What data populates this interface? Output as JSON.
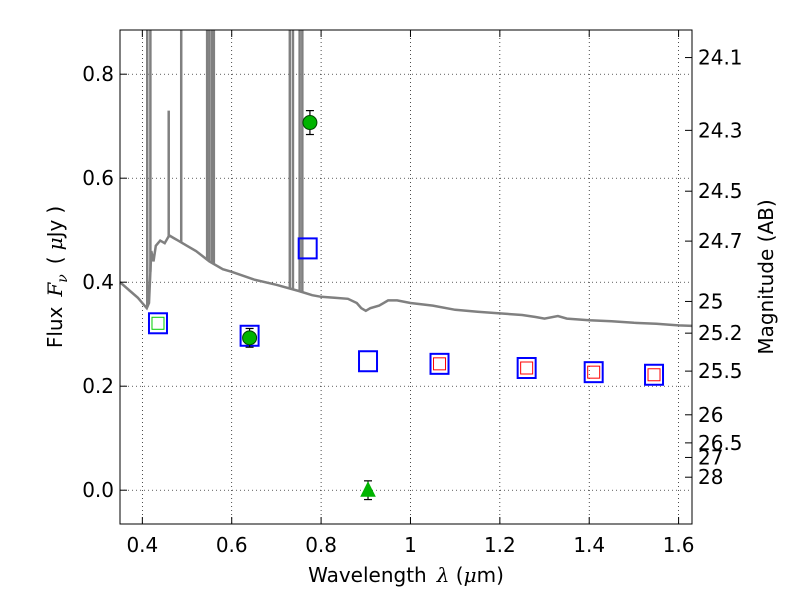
{
  "chart_data": {
    "type": "scatter",
    "xlabel": "Wavelength",
    "xlabel_symbol": "λ",
    "xlabel_unit_open": " (",
    "xlabel_unit_mu": "μ",
    "xlabel_unit_rest": "m)",
    "ylabel_prefix": "Flux",
    "ylabel_symbol": "F",
    "ylabel_sub": "ν",
    "ylabel_unit_open": "(",
    "ylabel_unit_mu": "μ",
    "ylabel_unit_rest": "Jy",
    "ylabel_unit_close": ")",
    "y2label": "Magnitude (AB)",
    "xlim": [
      0.35,
      1.63
    ],
    "ylim": [
      -0.065,
      0.885
    ],
    "grid": true,
    "x_ticks": [
      {
        "value": 0.4,
        "label": "0.4"
      },
      {
        "value": 0.6,
        "label": "0.6"
      },
      {
        "value": 0.8,
        "label": "0.8"
      },
      {
        "value": 1.0,
        "label": "1"
      },
      {
        "value": 1.2,
        "label": "1.2"
      },
      {
        "value": 1.4,
        "label": "1.4"
      },
      {
        "value": 1.6,
        "label": "1.6"
      }
    ],
    "y_ticks": [
      {
        "value": 0.0,
        "label": "0.0"
      },
      {
        "value": 0.2,
        "label": "0.2"
      },
      {
        "value": 0.4,
        "label": "0.4"
      },
      {
        "value": 0.6,
        "label": "0.6"
      },
      {
        "value": 0.8,
        "label": "0.8"
      }
    ],
    "y2_ticks": [
      {
        "label": "24.1",
        "flux": 0.832
      },
      {
        "label": "24.3",
        "flux": 0.692
      },
      {
        "label": "24.5",
        "flux": 0.575
      },
      {
        "label": "24.7",
        "flux": 0.479
      },
      {
        "label": "25",
        "flux": 0.363
      },
      {
        "label": "25.2",
        "flux": 0.302
      },
      {
        "label": "25.5",
        "flux": 0.229
      },
      {
        "label": "26",
        "flux": 0.145
      },
      {
        "label": "26.5",
        "flux": 0.091
      },
      {
        "label": "27",
        "flux": 0.063
      },
      {
        "label": "28",
        "flux": 0.025
      }
    ],
    "model_sed": {
      "color": "#808080",
      "continuum": [
        [
          0.35,
          0.4
        ],
        [
          0.37,
          0.385
        ],
        [
          0.39,
          0.37
        ],
        [
          0.4,
          0.36
        ],
        [
          0.41,
          0.35
        ],
        [
          0.415,
          0.36
        ],
        [
          0.42,
          0.46
        ],
        [
          0.425,
          0.44
        ],
        [
          0.43,
          0.47
        ],
        [
          0.44,
          0.48
        ],
        [
          0.45,
          0.475
        ],
        [
          0.46,
          0.49
        ],
        [
          0.47,
          0.485
        ],
        [
          0.48,
          0.48
        ],
        [
          0.5,
          0.47
        ],
        [
          0.52,
          0.46
        ],
        [
          0.55,
          0.44
        ],
        [
          0.58,
          0.425
        ],
        [
          0.6,
          0.42
        ],
        [
          0.65,
          0.405
        ],
        [
          0.7,
          0.395
        ],
        [
          0.75,
          0.383
        ],
        [
          0.78,
          0.375
        ],
        [
          0.8,
          0.372
        ],
        [
          0.83,
          0.37
        ],
        [
          0.86,
          0.368
        ],
        [
          0.88,
          0.36
        ],
        [
          0.89,
          0.35
        ],
        [
          0.9,
          0.345
        ],
        [
          0.91,
          0.35
        ],
        [
          0.93,
          0.355
        ],
        [
          0.95,
          0.365
        ],
        [
          0.97,
          0.365
        ],
        [
          1.0,
          0.36
        ],
        [
          1.05,
          0.355
        ],
        [
          1.1,
          0.347
        ],
        [
          1.15,
          0.343
        ],
        [
          1.2,
          0.34
        ],
        [
          1.25,
          0.337
        ],
        [
          1.28,
          0.333
        ],
        [
          1.3,
          0.33
        ],
        [
          1.33,
          0.335
        ],
        [
          1.35,
          0.33
        ],
        [
          1.4,
          0.327
        ],
        [
          1.45,
          0.325
        ],
        [
          1.5,
          0.322
        ],
        [
          1.55,
          0.32
        ],
        [
          1.58,
          0.318
        ],
        [
          1.6,
          0.317
        ],
        [
          1.63,
          0.316
        ]
      ],
      "emission_lines": [
        {
          "x": 0.411,
          "top": 0.885
        },
        {
          "x": 0.418,
          "top": 0.885
        },
        {
          "x": 0.459,
          "top": 0.73
        },
        {
          "x": 0.487,
          "top": 0.885
        },
        {
          "x": 0.545,
          "top": 0.885
        },
        {
          "x": 0.55,
          "top": 0.885
        },
        {
          "x": 0.556,
          "top": 0.885
        },
        {
          "x": 0.56,
          "top": 0.885
        },
        {
          "x": 0.73,
          "top": 0.885
        },
        {
          "x": 0.737,
          "top": 0.885
        },
        {
          "x": 0.752,
          "top": 0.885
        },
        {
          "x": 0.758,
          "top": 0.885
        }
      ]
    },
    "model_photometry": {
      "name": "model",
      "color": "#0000ff",
      "x": [
        0.435,
        0.64,
        0.77,
        0.905,
        1.065,
        1.26,
        1.41,
        1.545
      ],
      "y": [
        0.321,
        0.297,
        0.465,
        0.248,
        0.243,
        0.235,
        0.227,
        0.222
      ]
    },
    "red_squares": {
      "color": "#ff0000",
      "x": [
        1.065,
        1.26,
        1.41,
        1.545
      ],
      "y": [
        0.243,
        0.235,
        0.227,
        0.222
      ]
    },
    "green_square": {
      "color": "#00cc00",
      "x": [
        0.435
      ],
      "y": [
        0.321
      ]
    },
    "observations": {
      "color": "#00b400",
      "points": [
        {
          "x": 0.64,
          "y": 0.293,
          "err": 0.018,
          "marker": "circle"
        },
        {
          "x": 0.775,
          "y": 0.707,
          "err": 0.023,
          "marker": "circle"
        },
        {
          "x": 0.905,
          "y": 0.0,
          "err": 0.018,
          "marker": "triangle"
        }
      ]
    }
  }
}
